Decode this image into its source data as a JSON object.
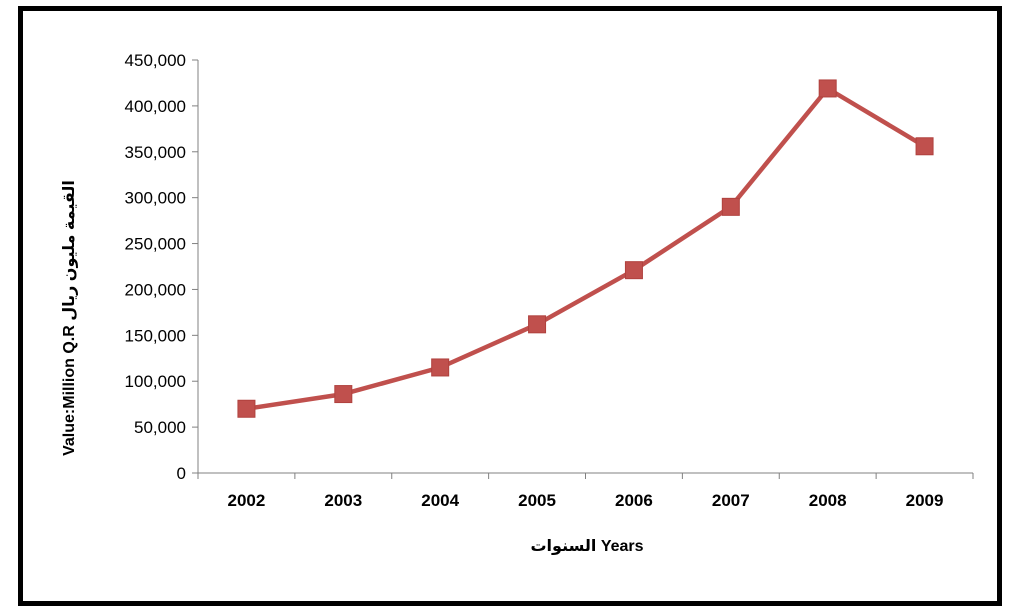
{
  "chart_data": {
    "type": "line",
    "x": [
      "2002",
      "2003",
      "2004",
      "2005",
      "2006",
      "2007",
      "2008",
      "2009"
    ],
    "series": [
      {
        "values": [
          70000,
          86000,
          115000,
          162000,
          221000,
          290000,
          419000,
          356000
        ]
      }
    ],
    "ylim": [
      0,
      450000
    ],
    "yticks": [
      "0",
      "50,000",
      "100,000",
      "150,000",
      "200,000",
      "250,000",
      "300,000",
      "350,000",
      "400,000",
      "450,000"
    ],
    "xlabel": "السنوات Years",
    "ylabel": "Value:Million Q.R القيمة مليون ريال",
    "grid": false,
    "legend": "none",
    "line_color": "#c0504d",
    "marker_color": "#c0504d",
    "marker": "square"
  }
}
